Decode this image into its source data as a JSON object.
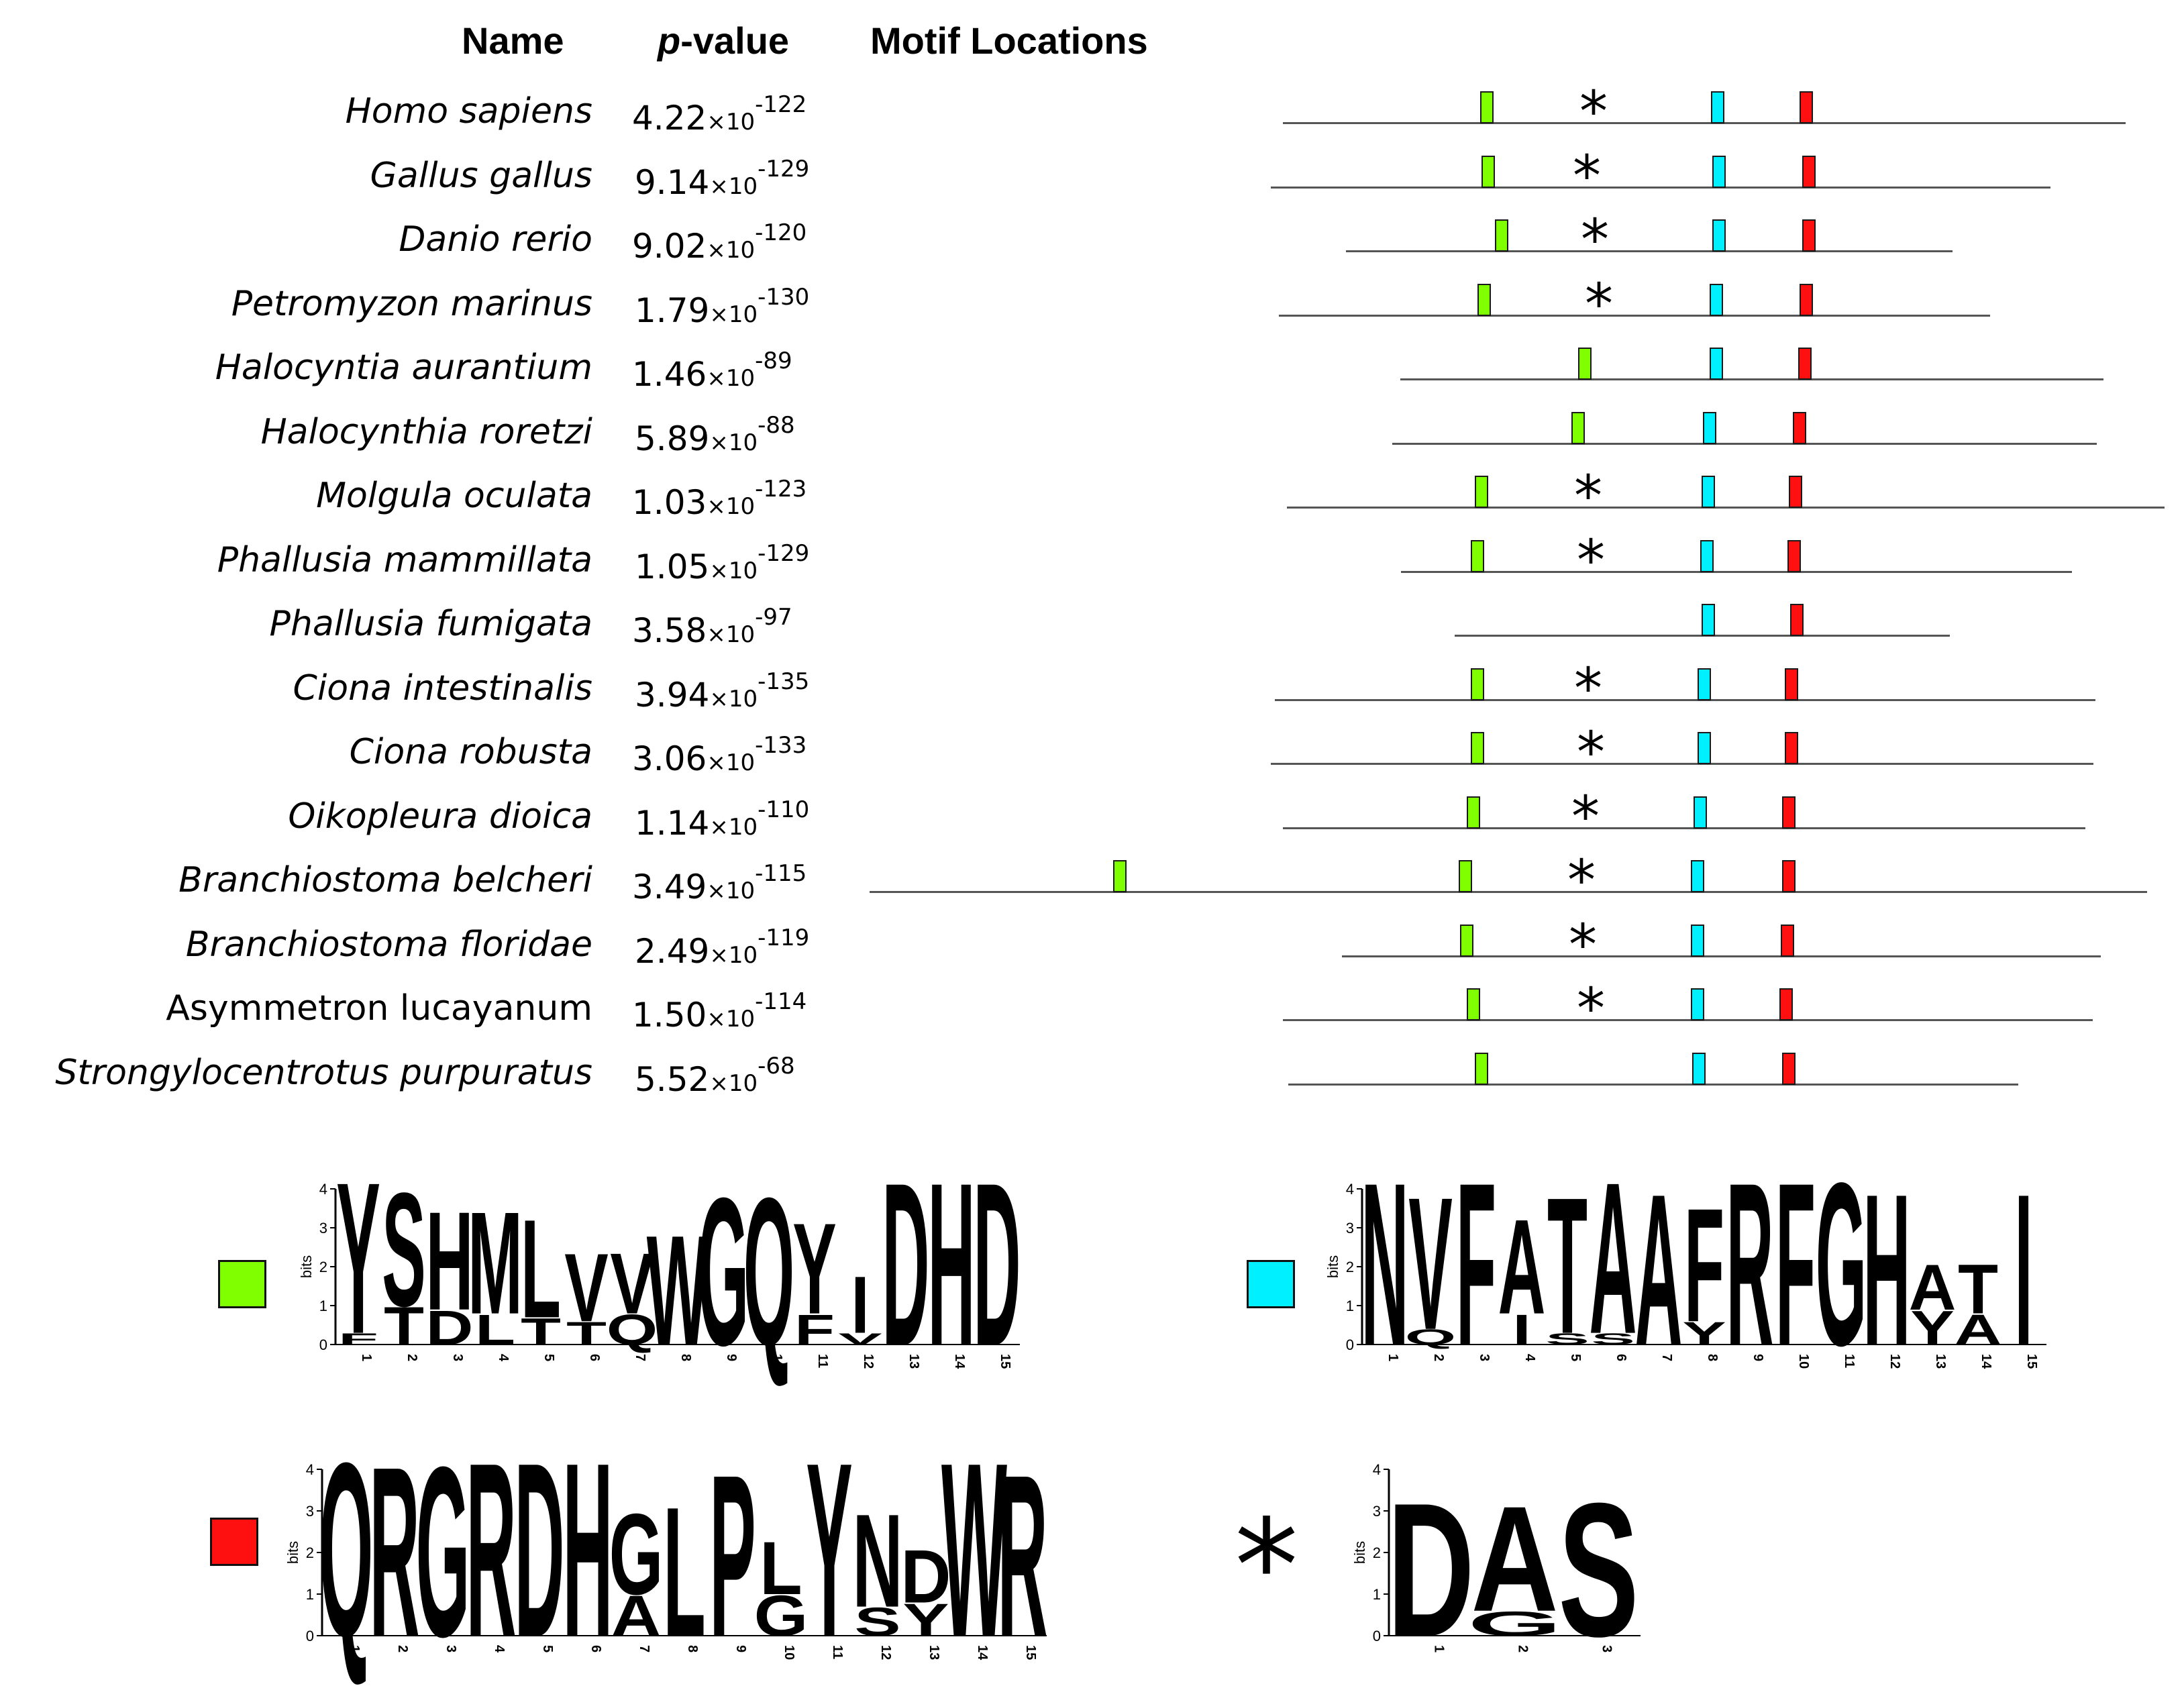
{
  "headers": {
    "name": "Name",
    "pvalue_p": "p",
    "pvalue_rest": "-value",
    "motif_locations": "Motif Locations"
  },
  "colors": {
    "green_motif": "#7fff00",
    "cyan_motif": "#00f0ff",
    "red_motif": "#ff1010",
    "line": "#555555"
  },
  "times": "×10",
  "star_symbol": "*",
  "species": [
    {
      "name": "Homo sapiens",
      "base": "4.22",
      "exp": "-122",
      "italic": true,
      "star": true
    },
    {
      "name": "Gallus gallus",
      "base": "9.14",
      "exp": "-129",
      "italic": true,
      "star": true
    },
    {
      "name": "Danio rerio",
      "base": "9.02",
      "exp": "-120",
      "italic": true,
      "star": true
    },
    {
      "name": "Petromyzon marinus",
      "base": "1.79",
      "exp": "-130",
      "italic": true,
      "star": true
    },
    {
      "name": "Halocyntia aurantium",
      "base": "1.46",
      "exp": "-89",
      "italic": true,
      "star": false
    },
    {
      "name": "Halocynthia roretzi",
      "base": "5.89",
      "exp": "-88",
      "italic": true,
      "star": false
    },
    {
      "name": "Molgula oculata",
      "base": "1.03",
      "exp": "-123",
      "italic": true,
      "star": true
    },
    {
      "name": "Phallusia mammillata",
      "base": "1.05",
      "exp": "-129",
      "italic": true,
      "star": true
    },
    {
      "name": "Phallusia fumigata",
      "base": "3.58",
      "exp": "-97",
      "italic": true,
      "star": false
    },
    {
      "name": "Ciona intestinalis",
      "base": "3.94",
      "exp": "-135",
      "italic": true,
      "star": true
    },
    {
      "name": "Ciona robusta",
      "base": "3.06",
      "exp": "-133",
      "italic": true,
      "star": true
    },
    {
      "name": "Oikopleura dioica",
      "base": "1.14",
      "exp": "-110",
      "italic": true,
      "star": true
    },
    {
      "name": "Branchiostoma belcheri",
      "base": "3.49",
      "exp": "-115",
      "italic": true,
      "star": true
    },
    {
      "name": "Branchiostoma floridae",
      "base": "2.49",
      "exp": "-119",
      "italic": true,
      "star": true
    },
    {
      "name": "Asymmetron lucayanum",
      "base": "1.50",
      "exp": "-114",
      "italic": false,
      "star": true
    },
    {
      "name": "Strongylocentrotus purpuratus",
      "base": "5.52",
      "exp": "-68",
      "italic": true,
      "star": false
    }
  ],
  "logos": {
    "axis_label": "bits",
    "y_ticks": [
      "0",
      "1",
      "2",
      "3",
      "4"
    ],
    "green": {
      "positions": [
        "1",
        "2",
        "3",
        "4",
        "5",
        "6",
        "7",
        "8",
        "9",
        "10",
        "11",
        "12",
        "13",
        "14",
        "15"
      ],
      "main": [
        "Y",
        "S",
        "H",
        "M",
        "L",
        "V",
        "V",
        "W",
        "G",
        "Q",
        "Y",
        "I",
        "D",
        "H",
        "D"
      ],
      "main_bits": [
        4.0,
        3.0,
        2.6,
        2.7,
        2.6,
        1.8,
        1.6,
        2.9,
        3.9,
        3.9,
        2.4,
        1.5,
        4.3,
        4.3,
        4.3
      ],
      "minor": [
        "F",
        "T",
        "D",
        "L",
        "T",
        "T",
        "Q",
        "",
        "",
        "",
        "F",
        "V",
        "",
        "",
        ""
      ],
      "minor_bits": [
        0.3,
        1.0,
        0.9,
        0.8,
        0.7,
        0.6,
        0.8,
        0,
        0,
        0,
        0.8,
        0.3,
        0,
        0,
        0
      ]
    },
    "cyan": {
      "positions": [
        "1",
        "2",
        "3",
        "4",
        "5",
        "6",
        "7",
        "8",
        "9",
        "10",
        "11",
        "12",
        "13",
        "14",
        "15"
      ],
      "main": [
        "N",
        "V",
        "F",
        "A",
        "T",
        "A",
        "A",
        "F",
        "R",
        "F",
        "G",
        "H",
        "A",
        "T",
        "I"
      ],
      "main_bits": [
        4.3,
        3.5,
        4.3,
        2.5,
        3.6,
        4.0,
        4.0,
        3.0,
        4.3,
        4.3,
        4.3,
        4.0,
        1.2,
        1.3,
        4.0
      ],
      "minor": [
        "",
        "Q",
        "",
        "I",
        "S",
        "S",
        "",
        "Y",
        "",
        "",
        "",
        "",
        "Y",
        "A",
        ""
      ],
      "minor_bits": [
        0,
        0.4,
        0,
        0.8,
        0.3,
        0.3,
        0,
        0.6,
        0,
        0,
        0,
        0,
        0.9,
        0.8,
        0
      ]
    },
    "red": {
      "positions": [
        "1",
        "2",
        "3",
        "4",
        "5",
        "6",
        "7",
        "8",
        "9",
        "10",
        "11",
        "12",
        "13",
        "14",
        "15"
      ],
      "main": [
        "Q",
        "R",
        "G",
        "R",
        "D",
        "H",
        "G",
        "L",
        "P",
        "L",
        "Y",
        "N",
        "D",
        "W",
        "R"
      ],
      "main_bits": [
        4.3,
        4.2,
        4.2,
        4.3,
        4.3,
        4.3,
        2.0,
        3.2,
        4.0,
        1.3,
        4.3,
        2.3,
        1.3,
        4.3,
        4.0
      ],
      "minor": [
        "",
        "",
        "",
        "",
        "",
        "",
        "A",
        "",
        "",
        "G",
        "",
        "S",
        "Y",
        "",
        ""
      ],
      "minor_bits": [
        0,
        0,
        0,
        0,
        0,
        0,
        1.0,
        0,
        0,
        1.0,
        0,
        0.7,
        0.8,
        0,
        0
      ]
    },
    "star": {
      "positions": [
        "1",
        "2",
        "3"
      ],
      "main": [
        "D",
        "A",
        "S"
      ],
      "main_bits": [
        3.3,
        2.6,
        3.3
      ],
      "minor": [
        "",
        "G",
        ""
      ],
      "minor_bits": [
        0,
        0.6,
        0
      ]
    }
  }
}
